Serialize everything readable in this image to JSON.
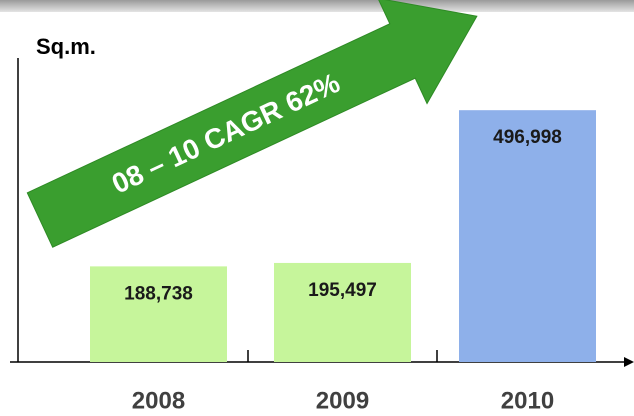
{
  "chart_data": {
    "type": "bar",
    "y_label": "Sq.m.",
    "annotation": "08 – 10 CAGR 62%",
    "categories": [
      "2008",
      "2009",
      "2010"
    ],
    "values": [
      188738,
      195497,
      496998
    ],
    "value_labels": [
      "188,738",
      "195,497",
      "496,998"
    ],
    "colors": [
      "#c6f59b",
      "#c6f59b",
      "#8eb0ea"
    ],
    "ylim": [
      0,
      600000
    ]
  }
}
